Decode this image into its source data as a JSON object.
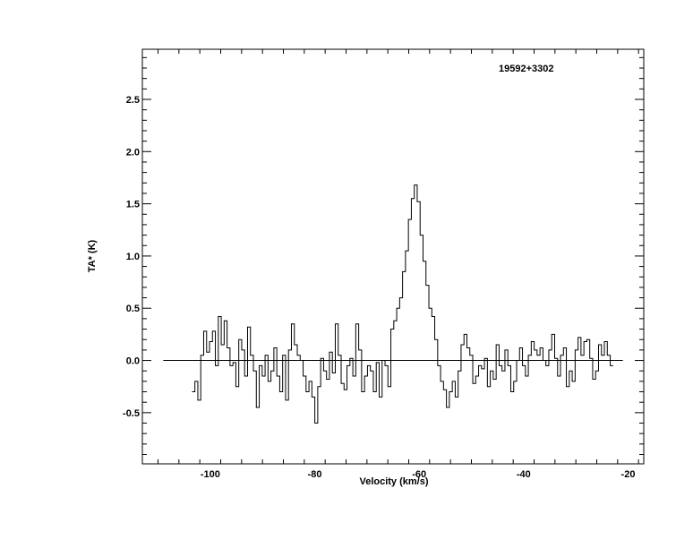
{
  "chart_data": {
    "type": "line",
    "step": true,
    "title": "",
    "annotation": "19592+3302",
    "xlabel": "Velocity (km/s)",
    "ylabel": "TA* (K)",
    "xlim": [
      -113,
      -17
    ],
    "ylim": [
      -0.99,
      2.98
    ],
    "xticks": [
      -100,
      -80,
      -60,
      -40,
      -20
    ],
    "xtick_labels": [
      "-100",
      "-80",
      "-60",
      "-40",
      "-20"
    ],
    "yticks": [
      -0.5,
      0.0,
      0.5,
      1.0,
      1.5,
      2.0,
      2.5
    ],
    "ytick_labels": [
      "-0.5",
      "0.0",
      "0.5",
      "1.0",
      "1.5",
      "2.0",
      "2.5"
    ],
    "baseline": {
      "y": 0.0,
      "x_range": [
        -109,
        -21
      ]
    },
    "grid": false,
    "x_start": -103.5,
    "x_step": 0.56,
    "series": [
      {
        "name": "",
        "color": "#000000",
        "values": [
          -0.3,
          -0.2,
          -0.38,
          0.05,
          0.28,
          0.08,
          0.18,
          0.28,
          -0.05,
          0.42,
          0.15,
          0.38,
          0.12,
          -0.05,
          -0.02,
          -0.25,
          0.2,
          0.1,
          -0.15,
          0.32,
          0.05,
          -0.1,
          -0.45,
          -0.05,
          -0.15,
          0.05,
          -0.2,
          -0.1,
          0.12,
          -0.15,
          -0.3,
          0.05,
          -0.38,
          0.1,
          0.35,
          0.15,
          0.05,
          0.0,
          -0.15,
          -0.3,
          -0.2,
          -0.35,
          -0.6,
          -0.25,
          0.02,
          -0.1,
          -0.18,
          0.08,
          -0.12,
          0.35,
          0.05,
          -0.22,
          -0.28,
          -0.05,
          0.02,
          -0.15,
          0.35,
          0.1,
          -0.3,
          -0.15,
          -0.05,
          -0.1,
          -0.3,
          -0.02,
          -0.35,
          0.0,
          -0.05,
          -0.25,
          0.3,
          0.38,
          0.5,
          0.6,
          0.85,
          1.05,
          1.35,
          1.55,
          1.68,
          1.52,
          1.2,
          0.95,
          0.72,
          0.5,
          0.42,
          0.2,
          -0.05,
          -0.2,
          -0.28,
          -0.45,
          -0.3,
          -0.2,
          -0.35,
          -0.1,
          0.15,
          0.25,
          0.12,
          0.05,
          -0.22,
          -0.15,
          -0.05,
          -0.08,
          0.02,
          -0.25,
          -0.1,
          -0.18,
          0.15,
          -0.05,
          -0.1,
          0.1,
          -0.05,
          -0.3,
          -0.2,
          0.0,
          0.12,
          -0.05,
          -0.15,
          0.05,
          0.18,
          0.1,
          0.05,
          0.12,
          0.0,
          -0.05,
          0.1,
          0.25,
          0.02,
          -0.15,
          0.05,
          0.12,
          -0.25,
          -0.1,
          -0.2,
          0.1,
          0.22,
          0.05,
          0.18,
          0.2,
          0.02,
          -0.18,
          -0.1,
          0.15,
          0.05,
          0.18,
          0.05,
          -0.05
        ]
      }
    ]
  }
}
